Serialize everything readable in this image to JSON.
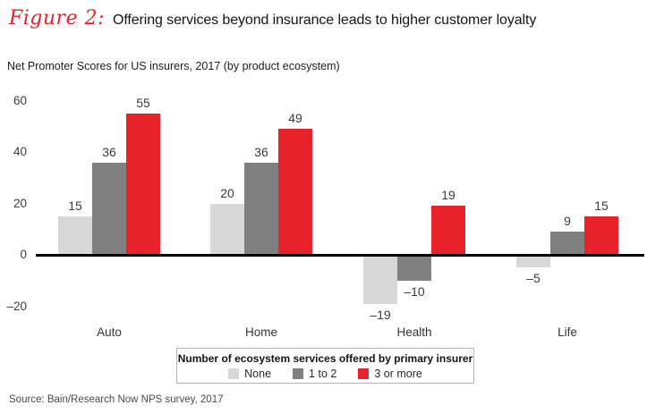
{
  "figure": {
    "label": "Figure 2:",
    "title": "Offering services beyond insurance leads to higher customer loyalty",
    "subtitle": "Net Promoter Scores for US insurers, 2017 (by product ecosystem)",
    "source": "Source: Bain/Research Now NPS survey, 2017"
  },
  "legend": {
    "title": "Number of ecosystem services offered by primary insurer",
    "items": [
      {
        "label": "None",
        "color": "#d8d8d8"
      },
      {
        "label": "1 to 2",
        "color": "#808080"
      },
      {
        "label": "3 or more",
        "color": "#e8222a"
      }
    ]
  },
  "chart_data": {
    "type": "bar",
    "title": "Net Promoter Scores for US insurers, 2017 (by product ecosystem)",
    "categories": [
      "Auto",
      "Home",
      "Health",
      "Life"
    ],
    "series": [
      {
        "name": "None",
        "color": "#d8d8d8",
        "values": [
          15,
          20,
          -19,
          -5
        ]
      },
      {
        "name": "1 to 2",
        "color": "#808080",
        "values": [
          36,
          36,
          -10,
          9
        ]
      },
      {
        "name": "3 or more",
        "color": "#e8222a",
        "values": [
          55,
          49,
          19,
          15
        ]
      }
    ],
    "xlabel": "",
    "ylabel": "",
    "yticks": [
      60,
      40,
      20,
      0,
      -20
    ],
    "ylim": [
      -30,
      65
    ],
    "grid": false,
    "legend_position": "bottom",
    "colors": {
      "axis": "#000000",
      "tick_text": "#3c3c3c",
      "value_text": "#3a3a3a"
    }
  }
}
